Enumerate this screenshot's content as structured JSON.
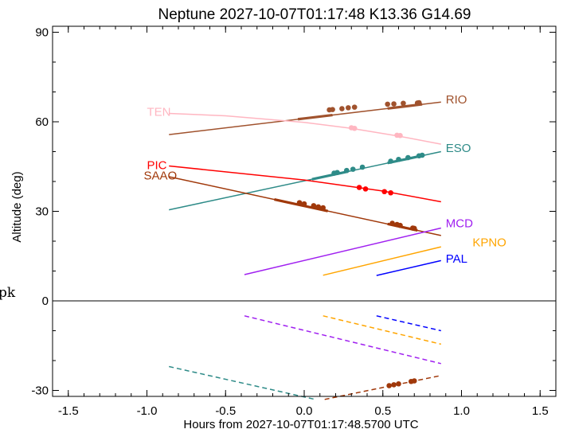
{
  "chart_data": {
    "type": "line",
    "title": "Neptune 2027-10-07T01:17:48  K13.36  G14.69",
    "xlabel": "Hours from 2027-10-07T01:17:48.5700 UTC",
    "ylabel": "Altitude (deg)",
    "xlim": [
      -1.6,
      1.6
    ],
    "ylim": [
      -32,
      92
    ],
    "xticks": [
      -1.5,
      -1.0,
      -0.5,
      0.0,
      0.5,
      1.0,
      1.5
    ],
    "xtick_labels": [
      "-1.5",
      "-1.0",
      "-0.5",
      "0.0",
      "0.5",
      "1.0",
      "1.5"
    ],
    "yticks": [
      -30,
      0,
      30,
      60,
      90
    ],
    "ytick_labels": [
      "-30",
      "0",
      "30",
      "60",
      "90"
    ],
    "zero_line": true,
    "grid": false,
    "stray_text": "pk",
    "series": [
      {
        "name": "RIO",
        "color": "#a0522d",
        "label_pos": [
          0.9,
          67.5
        ],
        "x": [
          -0.86,
          0.87
        ],
        "y": [
          55.7,
          66.6
        ],
        "below_x": [],
        "below_y": [],
        "thick": [
          [
            -0.04,
            0.18
          ],
          [
            0.53,
            0.75
          ]
        ],
        "dots": [
          [
            0.16,
            64.0
          ],
          [
            0.18,
            64.1
          ],
          [
            0.24,
            64.4
          ],
          [
            0.28,
            64.7
          ],
          [
            0.32,
            64.9
          ],
          [
            0.53,
            65.9
          ],
          [
            0.57,
            66.0
          ],
          [
            0.63,
            66.2
          ],
          [
            0.72,
            66.3
          ],
          [
            0.73,
            66.4
          ]
        ]
      },
      {
        "name": "TEN",
        "color": "#ffb6c1",
        "label_pos": [
          -1.0,
          63.3
        ],
        "x": [
          -0.86,
          -0.5,
          0.0,
          0.3,
          0.6,
          0.87
        ],
        "y": [
          62.8,
          62.0,
          59.8,
          57.8,
          55.2,
          52.5
        ],
        "below_x": [],
        "below_y": [],
        "thick": [],
        "dots": [
          [
            0.3,
            58.0
          ],
          [
            0.32,
            57.8
          ],
          [
            0.59,
            55.5
          ],
          [
            0.61,
            55.4
          ]
        ]
      },
      {
        "name": "ESO",
        "color": "#2e8b88",
        "label_pos": [
          0.9,
          51.2
        ],
        "x": [
          -0.86,
          0.87
        ],
        "y": [
          30.5,
          50.0
        ],
        "below_x": [
          -0.86,
          0.07
        ],
        "below_y": [
          -22.0,
          -33.0
        ],
        "thick": [
          [
            0.05,
            0.28
          ],
          [
            0.53,
            0.75
          ]
        ],
        "dots": [
          [
            0.19,
            42.8
          ],
          [
            0.21,
            43.0
          ],
          [
            0.27,
            43.7
          ],
          [
            0.31,
            44.1
          ],
          [
            0.37,
            44.8
          ],
          [
            0.55,
            46.8
          ],
          [
            0.6,
            47.4
          ],
          [
            0.66,
            48.0
          ],
          [
            0.73,
            48.6
          ],
          [
            0.75,
            48.8
          ]
        ]
      },
      {
        "name": "PIC",
        "color": "#ff0000",
        "label_pos": [
          -1.0,
          45.5
        ],
        "x": [
          -0.86,
          0.0,
          0.5,
          0.87
        ],
        "y": [
          45.2,
          40.5,
          36.8,
          33.2
        ],
        "below_x": [],
        "below_y": [],
        "thick": [],
        "dots": [
          [
            0.35,
            38.0
          ],
          [
            0.39,
            37.5
          ],
          [
            0.51,
            36.6
          ],
          [
            0.55,
            36.2
          ]
        ]
      },
      {
        "name": "SAAO",
        "color": "#a0380a",
        "label_pos": [
          -1.02,
          42.0
        ],
        "x": [
          -0.86,
          0.87
        ],
        "y": [
          41.6,
          21.9
        ],
        "below_x": [
          0.13,
          0.87
        ],
        "below_y": [
          -33.0,
          -25.0
        ],
        "thick": [
          [
            -0.19,
            0.15
          ],
          [
            0.53,
            0.72
          ]
        ],
        "dots": [
          [
            -0.03,
            32.9
          ],
          [
            0.0,
            32.5
          ],
          [
            0.06,
            31.9
          ],
          [
            0.09,
            31.5
          ],
          [
            0.12,
            31.2
          ],
          [
            0.56,
            26.0
          ],
          [
            0.59,
            25.6
          ],
          [
            0.61,
            25.3
          ],
          [
            0.69,
            24.4
          ],
          [
            0.7,
            24.3
          ],
          [
            0.54,
            -28.4
          ],
          [
            0.57,
            -28.1
          ],
          [
            0.6,
            -27.8
          ],
          [
            0.68,
            -27.0
          ],
          [
            0.7,
            -26.8
          ]
        ]
      },
      {
        "name": "MCD",
        "color": "#a020f0",
        "label_pos": [
          0.9,
          26.0
        ],
        "x": [
          -0.38,
          0.87
        ],
        "y": [
          8.8,
          24.4
        ],
        "below_x": [
          -0.38,
          0.87
        ],
        "below_y": [
          -5.0,
          -21.0
        ],
        "thick": [],
        "dots": []
      },
      {
        "name": "KPNO",
        "color": "#ffa500",
        "label_pos": [
          1.07,
          19.6
        ],
        "x": [
          0.12,
          0.87
        ],
        "y": [
          8.6,
          18.1
        ],
        "below_x": [
          0.12,
          0.87
        ],
        "below_y": [
          -5.0,
          -14.5
        ],
        "thick": [],
        "dots": []
      },
      {
        "name": "PAL",
        "color": "#0000ff",
        "label_pos": [
          0.9,
          14.2
        ],
        "x": [
          0.46,
          0.87
        ],
        "y": [
          8.5,
          13.5
        ],
        "below_x": [
          0.46,
          0.87
        ],
        "below_y": [
          -5.0,
          -10.0
        ],
        "thick": [],
        "dots": []
      }
    ]
  }
}
